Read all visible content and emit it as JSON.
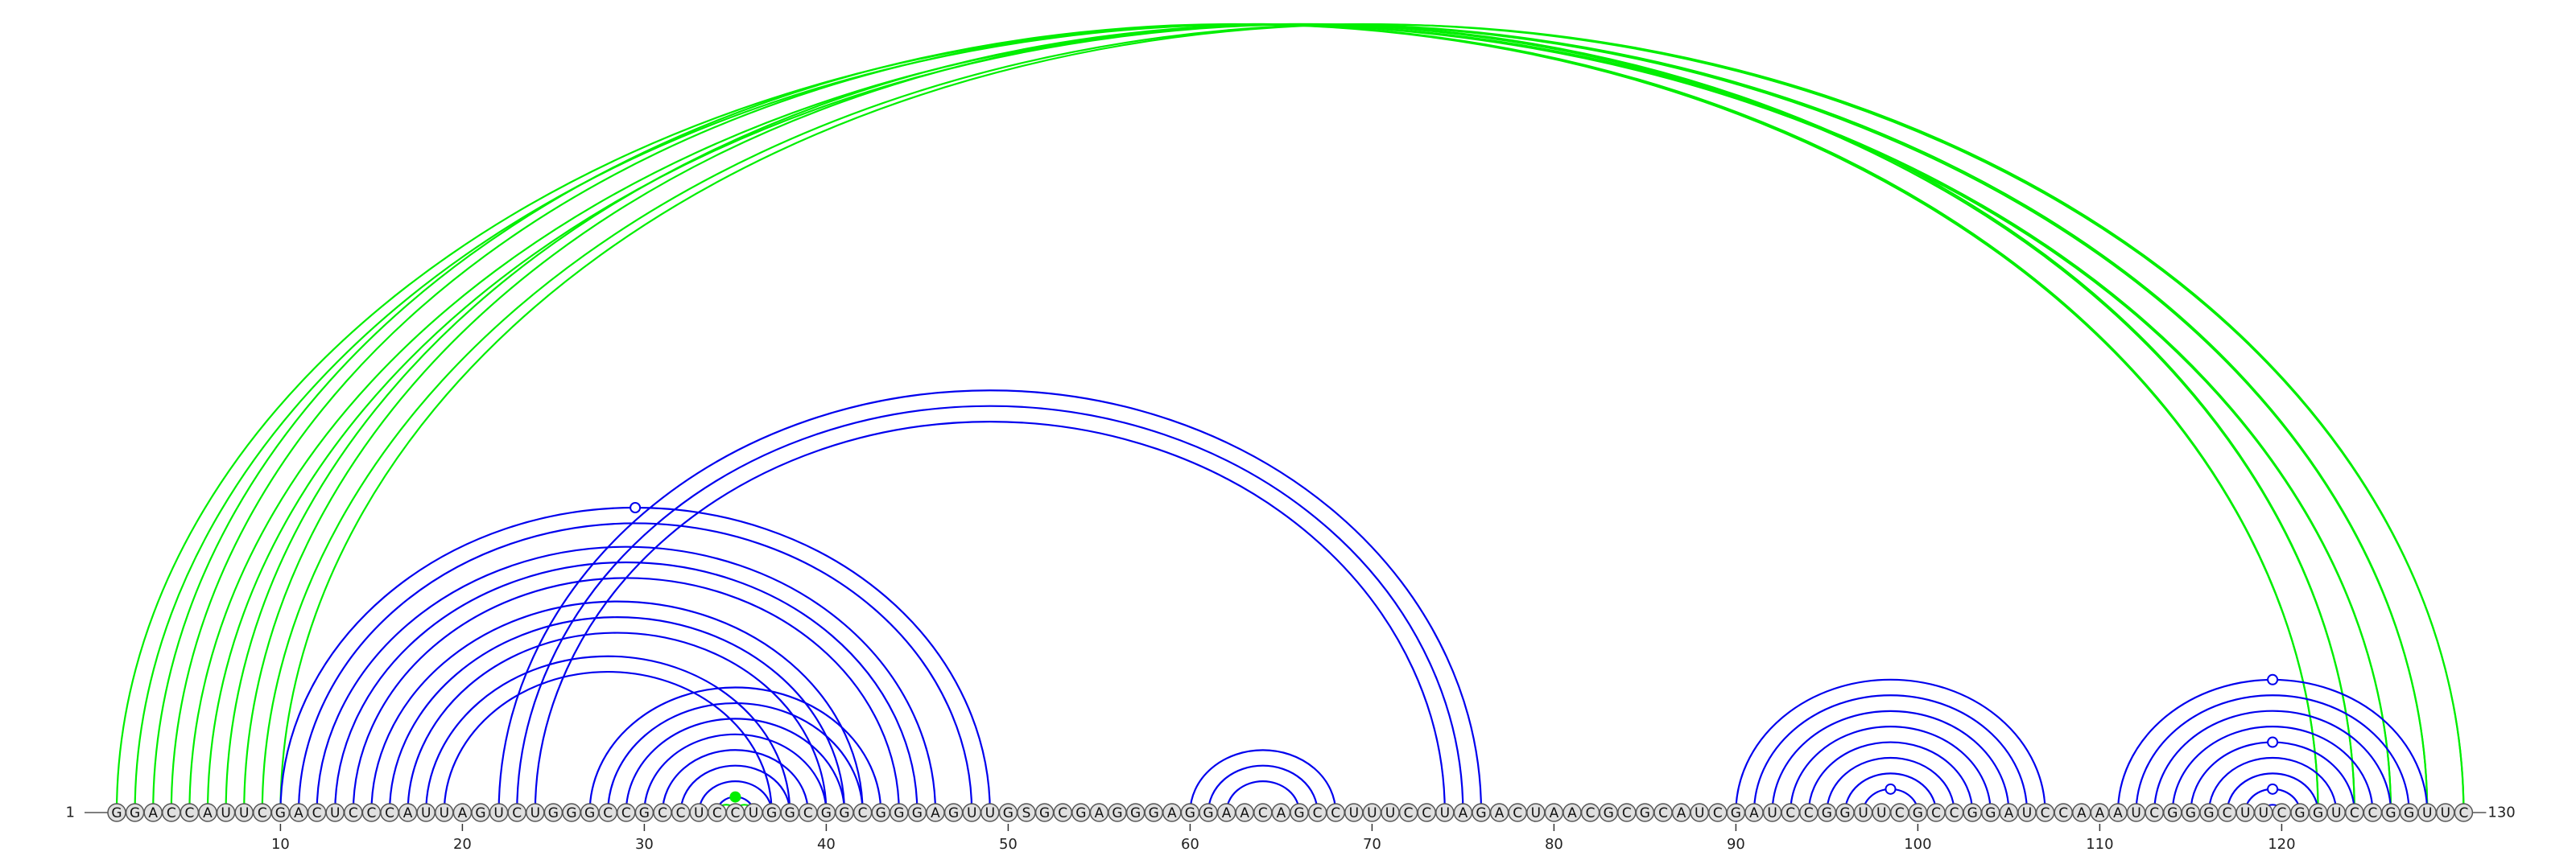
{
  "diagram": {
    "type": "rna-arc-diagram",
    "sequence": "GGACCAUUCGACUCCCAUUAGUCUGGGCCGCCUCCUGGCGGCGGGAGUUGSGCGAGGGAGGAACAGCCUUUCCUAGACUAACGCGCAUCGAUCCGGUUCGCCGGAUCCAAAUCGGGCUUCGGUCCGGUUC",
    "start_label": "1",
    "end_label": "130",
    "ticks": [
      "10",
      "20",
      "30",
      "40",
      "50",
      "60",
      "70",
      "80",
      "90",
      "100",
      "110",
      "120"
    ],
    "colors": {
      "primary_arcs": "#0000ee",
      "secondary_arcs": "#00ee00",
      "nucleotide_fill": "#e0e0e0"
    },
    "arc_groups": [
      {
        "color": "secondary",
        "pairs": [
          [
            1,
            126
          ],
          [
            2,
            126
          ],
          [
            3,
            122
          ],
          [
            4,
            122
          ],
          [
            5,
            128
          ],
          [
            6,
            128
          ],
          [
            7,
            124
          ],
          [
            8,
            124
          ],
          [
            9,
            130
          ],
          [
            10,
            130
          ]
        ]
      },
      {
        "color": "primary",
        "pairs": [
          [
            10,
            49
          ],
          [
            11,
            48
          ],
          [
            12,
            46
          ],
          [
            13,
            45
          ],
          [
            14,
            44
          ],
          [
            15,
            42
          ],
          [
            16,
            41
          ],
          [
            17,
            40
          ],
          [
            18,
            38
          ],
          [
            19,
            37
          ]
        ]
      },
      {
        "color": "primary",
        "pairs": [
          [
            22,
            76
          ],
          [
            23,
            75
          ],
          [
            24,
            74
          ]
        ]
      },
      {
        "color": "primary",
        "pairs": [
          [
            27,
            43
          ],
          [
            28,
            42
          ],
          [
            29,
            41
          ],
          [
            30,
            40
          ],
          [
            31,
            39
          ],
          [
            32,
            38
          ],
          [
            33,
            37
          ],
          [
            34,
            36
          ]
        ]
      },
      {
        "color": "secondary",
        "pairs": [
          [
            34,
            35
          ],
          [
            35,
            36
          ]
        ]
      },
      {
        "color": "primary",
        "pairs": [
          [
            60,
            68
          ],
          [
            61,
            67
          ],
          [
            62,
            66
          ]
        ]
      },
      {
        "color": "primary",
        "pairs": [
          [
            90,
            107
          ],
          [
            91,
            106
          ],
          [
            92,
            105
          ],
          [
            93,
            104
          ],
          [
            94,
            103
          ],
          [
            95,
            102
          ],
          [
            96,
            101
          ],
          [
            97,
            100
          ]
        ]
      },
      {
        "color": "primary",
        "pairs": [
          [
            111,
            128
          ],
          [
            112,
            127
          ],
          [
            113,
            126
          ],
          [
            114,
            125
          ],
          [
            115,
            124
          ],
          [
            116,
            123
          ],
          [
            117,
            122
          ],
          [
            118,
            121
          ],
          [
            119,
            120
          ]
        ]
      }
    ],
    "markers": [
      {
        "kind": "open",
        "color": "primary",
        "position": 29.5,
        "on_pair": [
          10,
          49
        ]
      },
      {
        "kind": "filled",
        "color": "secondary",
        "position": 35,
        "on_pair": [
          34,
          36
        ]
      },
      {
        "kind": "open",
        "color": "primary",
        "position": 98.5,
        "on_pair": [
          97,
          100
        ]
      },
      {
        "kind": "open",
        "color": "primary",
        "position": 119.5,
        "on_pair": [
          111,
          128
        ]
      },
      {
        "kind": "open",
        "color": "primary",
        "position": 119.5,
        "on_pair": [
          115,
          124
        ]
      },
      {
        "kind": "open",
        "color": "primary",
        "position": 119.5,
        "on_pair": [
          118,
          121
        ]
      }
    ]
  }
}
